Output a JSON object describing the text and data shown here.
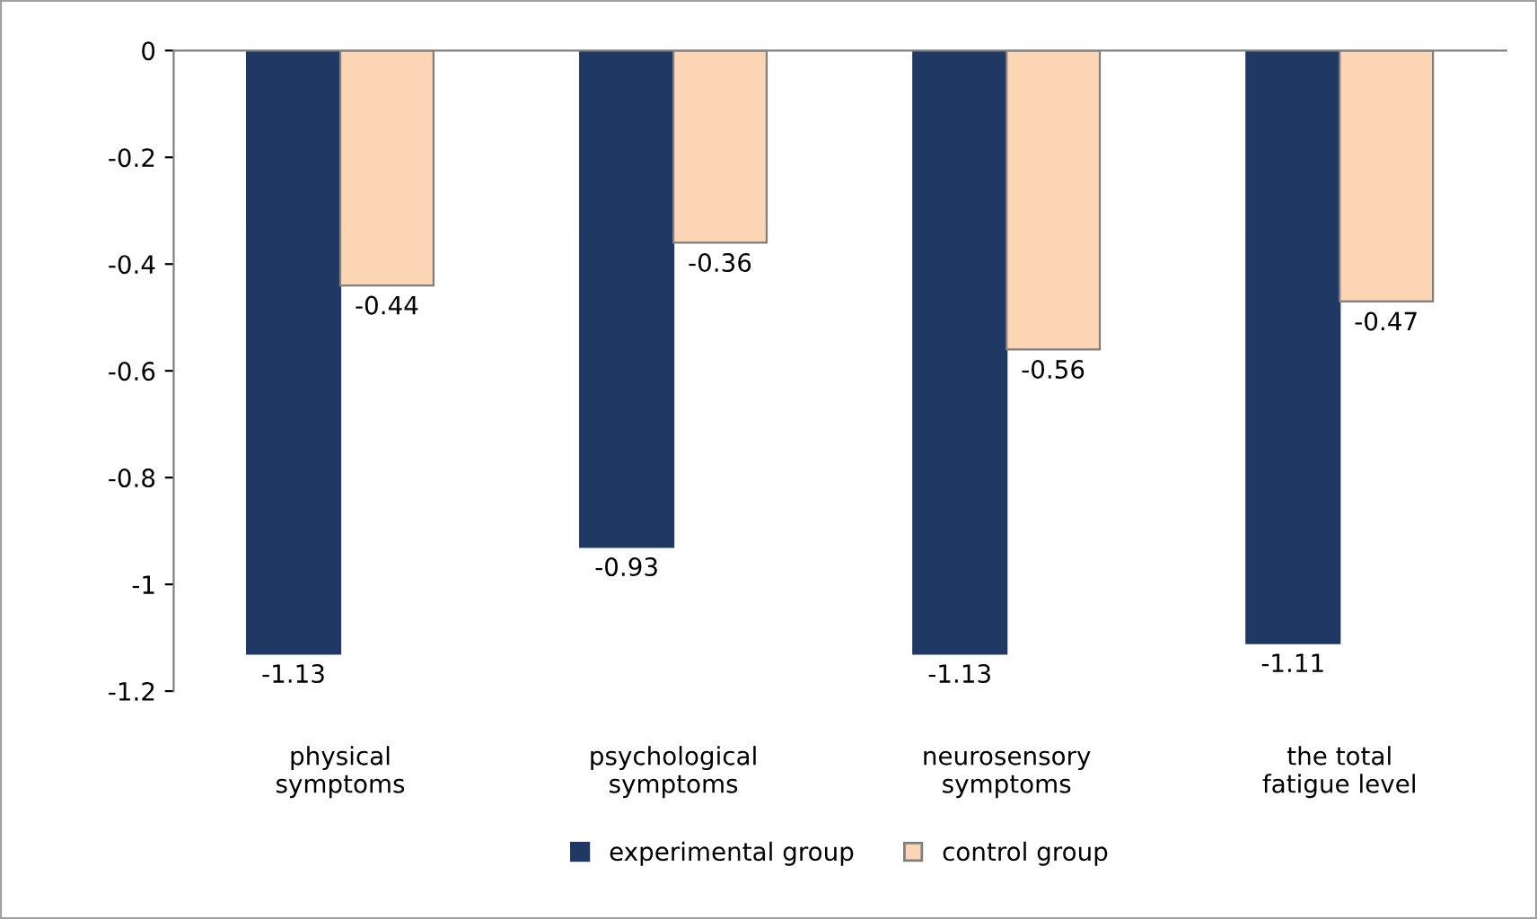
{
  "chart_data": {
    "type": "bar",
    "categories": [
      "physical\nsymptoms",
      "psychological\nsymptoms",
      "neurosensory\nsymptoms",
      "the total\nfatigue level"
    ],
    "series": [
      {
        "name": "experimental group",
        "color": "#1f3864",
        "values": [
          -1.13,
          -0.93,
          -1.13,
          -1.11
        ]
      },
      {
        "name": "control group",
        "color": "#fcd5b5",
        "values": [
          -0.44,
          -0.36,
          -0.56,
          -0.47
        ]
      }
    ],
    "ylim": [
      -1.2,
      0
    ],
    "yticks": [
      0,
      -0.2,
      -0.4,
      -0.6,
      -0.8,
      -1,
      -1.2
    ],
    "data_labels": true,
    "grid": false,
    "legend": "bottom"
  }
}
